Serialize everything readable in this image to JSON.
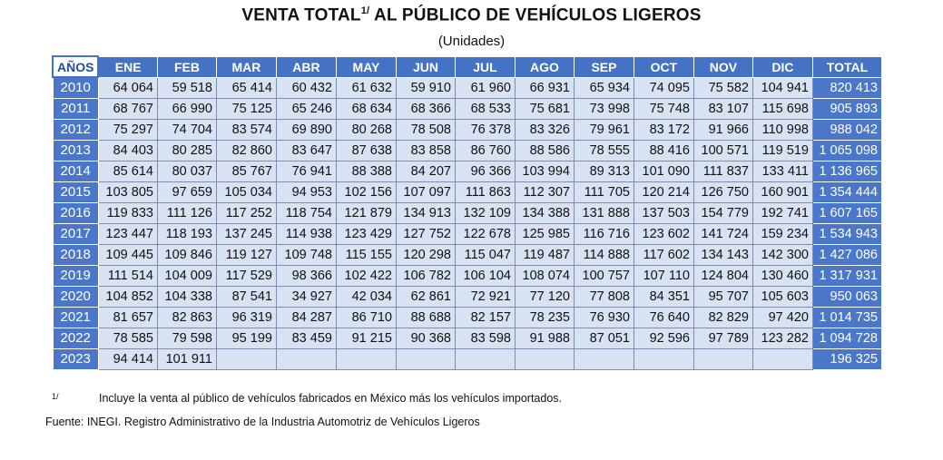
{
  "title": {
    "text": "VENTA TOTAL",
    "superscript": "1/",
    "text_after": " AL PÚBLICO DE VEHÍCULOS LIGEROS"
  },
  "subtitle": "(Unidades)",
  "table": {
    "headers": [
      "AÑOS",
      "ENE",
      "FEB",
      "MAR",
      "ABR",
      "MAY",
      "JUN",
      "JUL",
      "AGO",
      "SEP",
      "OCT",
      "NOV",
      "DIC",
      "TOTAL"
    ],
    "rows": [
      {
        "year": "2010",
        "months": [
          "64 064",
          "59 518",
          "65 414",
          "60 432",
          "61 632",
          "59 910",
          "61 960",
          "66 931",
          "65 934",
          "74 095",
          "75 582",
          "104 941"
        ],
        "total": "820 413"
      },
      {
        "year": "2011",
        "months": [
          "68 767",
          "66 990",
          "75 125",
          "65 246",
          "68 634",
          "68 366",
          "68 533",
          "75 681",
          "73 998",
          "75 748",
          "83 107",
          "115 698"
        ],
        "total": "905 893"
      },
      {
        "year": "2012",
        "months": [
          "75 297",
          "74 704",
          "83 574",
          "69 890",
          "80 268",
          "78 508",
          "76 378",
          "83 326",
          "79 961",
          "83 172",
          "91 966",
          "110 998"
        ],
        "total": "988 042"
      },
      {
        "year": "2013",
        "months": [
          "84 403",
          "80 285",
          "82 860",
          "83 647",
          "87 638",
          "83 858",
          "86 760",
          "88 586",
          "78 555",
          "88 416",
          "100 571",
          "119 519"
        ],
        "total": "1 065 098"
      },
      {
        "year": "2014",
        "months": [
          "85 614",
          "80 037",
          "85 767",
          "76 941",
          "88 388",
          "84 207",
          "96 366",
          "103 994",
          "89 313",
          "101 090",
          "111 837",
          "133 411"
        ],
        "total": "1 136 965"
      },
      {
        "year": "2015",
        "months": [
          "103 805",
          "97 659",
          "105 034",
          "94 953",
          "102 156",
          "107 097",
          "111 863",
          "112 307",
          "111 705",
          "120 214",
          "126 750",
          "160 901"
        ],
        "total": "1 354 444"
      },
      {
        "year": "2016",
        "months": [
          "119 833",
          "111 126",
          "117 252",
          "118 754",
          "121 879",
          "134 913",
          "132 109",
          "134 388",
          "131 888",
          "137 503",
          "154 779",
          "192 741"
        ],
        "total": "1 607 165"
      },
      {
        "year": "2017",
        "months": [
          "123 447",
          "118 193",
          "137 245",
          "114 938",
          "123 429",
          "127 752",
          "122 678",
          "125 985",
          "116 716",
          "123 602",
          "141 724",
          "159 234"
        ],
        "total": "1 534 943"
      },
      {
        "year": "2018",
        "months": [
          "109 445",
          "109 846",
          "119 127",
          "109 748",
          "115 155",
          "120 298",
          "115 047",
          "119 487",
          "114 888",
          "117 602",
          "134 143",
          "142 300"
        ],
        "total": "1 427 086"
      },
      {
        "year": "2019",
        "months": [
          "111 514",
          "104 009",
          "117 529",
          "98 366",
          "102 422",
          "106 782",
          "106 104",
          "108 074",
          "100 757",
          "107 110",
          "124 804",
          "130 460"
        ],
        "total": "1 317 931"
      },
      {
        "year": "2020",
        "months": [
          "104 852",
          "104 338",
          "87 541",
          "34 927",
          "42 034",
          "62 861",
          "72 921",
          "77 120",
          "77 808",
          "84 351",
          "95 707",
          "105 603"
        ],
        "total": "950 063"
      },
      {
        "year": "2021",
        "months": [
          "81 657",
          "82 863",
          "96 319",
          "84 287",
          "86 710",
          "88 688",
          "82 157",
          "78 235",
          "76 930",
          "76 640",
          "82 829",
          "97 420"
        ],
        "total": "1 014 735"
      },
      {
        "year": "2022",
        "months": [
          "78 585",
          "79 598",
          "95 199",
          "83 459",
          "91 215",
          "90 368",
          "83 598",
          "91 988",
          "87 051",
          "92 596",
          "97 789",
          "123 282"
        ],
        "total": "1 094 728"
      },
      {
        "year": "2023",
        "months": [
          "94 414",
          "101 911",
          "",
          "",
          "",
          "",
          "",
          "",
          "",
          "",
          "",
          ""
        ],
        "total": "196 325"
      }
    ]
  },
  "footnote": {
    "marker": "1/",
    "text": "Incluye la venta al público de vehículos fabricados en México más los vehículos importados."
  },
  "source": "Fuente: INEGI. Registro Administrativo de la Industria Automotriz de Vehículos Ligeros",
  "colors": {
    "header_blue": "#4472c4",
    "cell_light_blue": "#d9e2f3"
  }
}
